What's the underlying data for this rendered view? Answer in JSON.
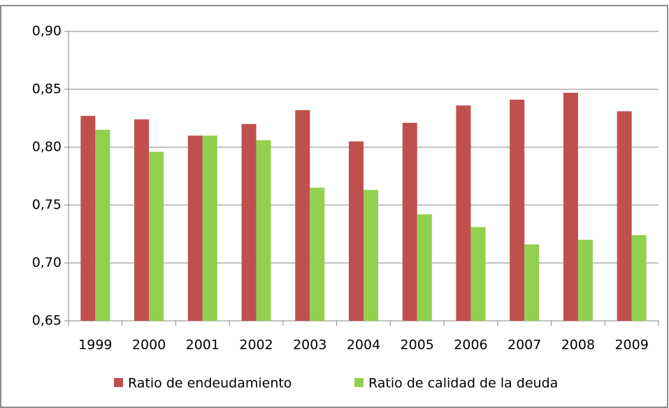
{
  "chart_data": {
    "type": "bar",
    "categories": [
      "1999",
      "2000",
      "2001",
      "2002",
      "2003",
      "2004",
      "2005",
      "2006",
      "2007",
      "2008",
      "2009"
    ],
    "series": [
      {
        "name": "Ratio de endeudamiento",
        "color": "#c0504d",
        "values": [
          0.827,
          0.824,
          0.81,
          0.82,
          0.832,
          0.805,
          0.821,
          0.836,
          0.841,
          0.847,
          0.831
        ]
      },
      {
        "name": "Ratio de calidad de la deuda",
        "color": "#92d050",
        "values": [
          0.815,
          0.796,
          0.81,
          0.806,
          0.765,
          0.763,
          0.742,
          0.731,
          0.716,
          0.72,
          0.724
        ]
      }
    ],
    "ylim": [
      0.65,
      0.9
    ],
    "yticks": [
      {
        "value": 0.65,
        "label": "0,65"
      },
      {
        "value": 0.7,
        "label": "0,70"
      },
      {
        "value": 0.75,
        "label": "0,75"
      },
      {
        "value": 0.8,
        "label": "0,80"
      },
      {
        "value": 0.85,
        "label": "0,85"
      },
      {
        "value": 0.9,
        "label": "0,90"
      }
    ],
    "grid": true,
    "legend": "bottom"
  }
}
